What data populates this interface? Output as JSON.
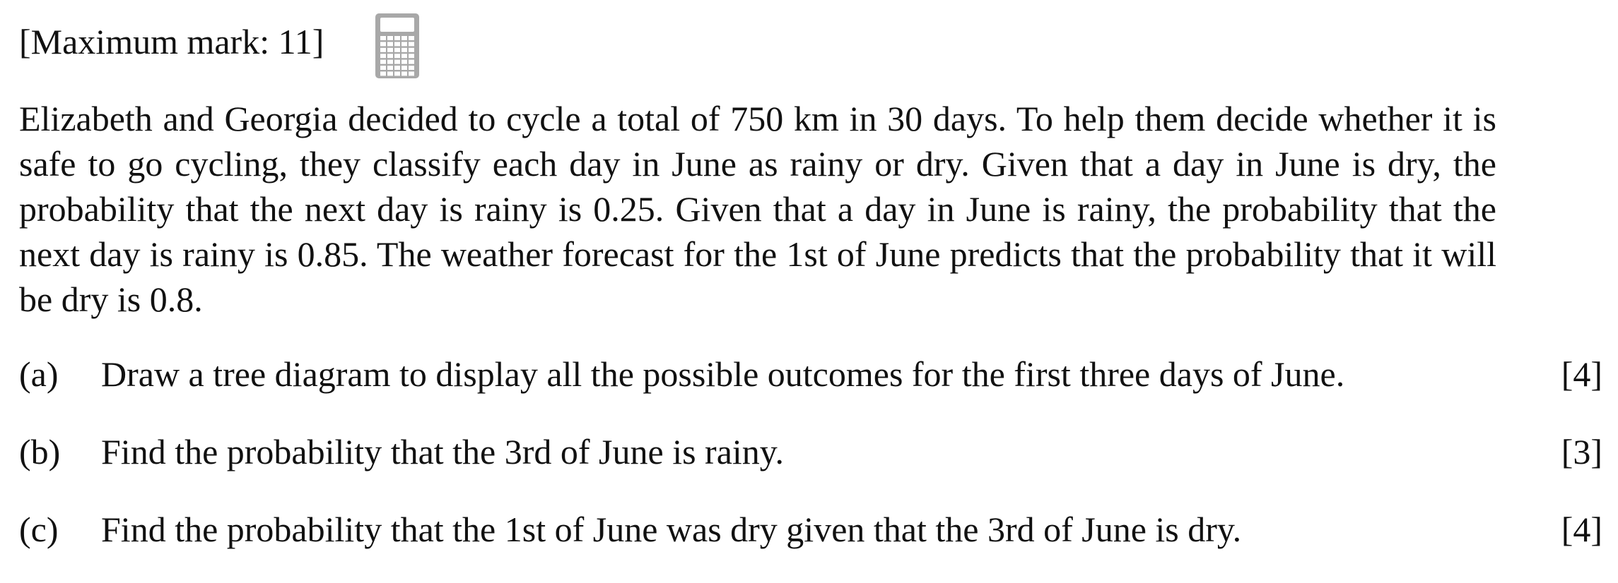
{
  "header": {
    "max_mark": "[Maximum mark: 11]",
    "calculator_icon": "calculator-icon"
  },
  "intro": {
    "text": "Elizabeth and Georgia decided to cycle a total of 750 km in 30 days. To help them decide whether it is safe to go cycling, they classify each day in June as rainy or dry. Given that a day in June is dry, the probability that the next day is rainy is 0.25. Given that a day in June is rainy, the probability that the next day is rainy is 0.85. The weather forecast for the 1st of June predicts that the probability that it will be dry is 0.8."
  },
  "questions": [
    {
      "label": "(a)",
      "text": "Draw a tree diagram to display all the possible outcomes for the first three days of June.",
      "marks": "[4]"
    },
    {
      "label": "(b)",
      "text": "Find the probability that the 3rd of June is rainy.",
      "marks": "[3]"
    },
    {
      "label": "(c)",
      "text": "Find the probability that the 1st of June was dry given that the 3rd of June is dry.",
      "marks": "[4]"
    }
  ],
  "colors": {
    "text": "#111111",
    "icon": "#a8a8a8",
    "background": "#ffffff"
  }
}
